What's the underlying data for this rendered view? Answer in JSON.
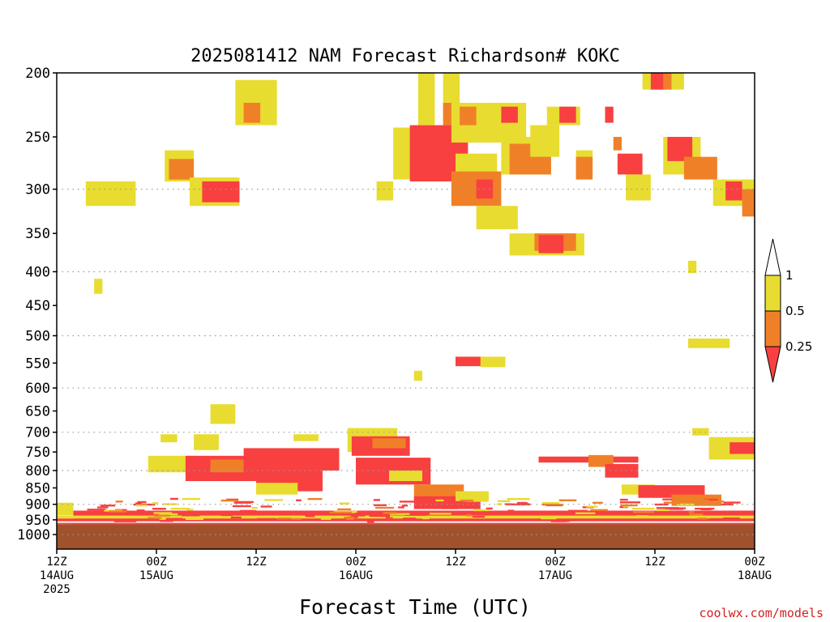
{
  "title": "2025081412 NAM Forecast Richardson# KOKC",
  "credit": "coolwx.com/models",
  "chart_data": {
    "type": "heatmap",
    "title": "2025081412 NAM Forecast Richardson# KOKC",
    "xlabel": "Forecast Time (UTC)",
    "ylabel": "",
    "x_unit": "forecast hour from 2025-08-14 12Z",
    "xlim": [
      0,
      84
    ],
    "y_scale": "log",
    "ylim": [
      1000,
      200
    ],
    "y_ticks": [
      200,
      250,
      300,
      350,
      400,
      450,
      500,
      550,
      600,
      650,
      700,
      750,
      800,
      850,
      900,
      950,
      1000
    ],
    "y_gridlines": [
      300,
      400,
      500,
      600,
      700,
      800,
      900,
      1000
    ],
    "grid": true,
    "x_ticks": [
      {
        "x": 0,
        "line1": "12Z",
        "line2": "14AUG",
        "line3": "2025"
      },
      {
        "x": 12,
        "line1": "00Z",
        "line2": "15AUG",
        "line3": ""
      },
      {
        "x": 24,
        "line1": "12Z",
        "line2": "",
        "line3": ""
      },
      {
        "x": 36,
        "line1": "00Z",
        "line2": "16AUG",
        "line3": ""
      },
      {
        "x": 48,
        "line1": "12Z",
        "line2": "",
        "line3": ""
      },
      {
        "x": 60,
        "line1": "00Z",
        "line2": "17AUG",
        "line3": ""
      },
      {
        "x": 72,
        "line1": "12Z",
        "line2": "",
        "line3": ""
      },
      {
        "x": 84,
        "line1": "00Z",
        "line2": "18AUG",
        "line3": ""
      }
    ],
    "legend": {
      "placement": "right",
      "levels": [
        "0.25",
        "0.5",
        "1"
      ],
      "colors": {
        "below_0.25": "#f84040",
        "0.25-0.5": "#f08028",
        "0.5-1": "#e8dc30",
        "above_1": "#ffffff"
      }
    },
    "ground_color": "#a0522d",
    "ground_top_p": 965,
    "regions": [
      {
        "c": "y",
        "x": [
          3.5,
          9.5
        ],
        "p": [
          292,
          318
        ]
      },
      {
        "c": "y",
        "x": [
          4.5,
          5.5
        ],
        "p": [
          410,
          432
        ]
      },
      {
        "c": "y",
        "x": [
          13,
          16.5
        ],
        "p": [
          262,
          292
        ]
      },
      {
        "c": "o",
        "x": [
          13.5,
          16.5
        ],
        "p": [
          270,
          290
        ]
      },
      {
        "c": "y",
        "x": [
          16,
          22
        ],
        "p": [
          288,
          318
        ]
      },
      {
        "c": "r",
        "x": [
          17.5,
          22
        ],
        "p": [
          292,
          314
        ]
      },
      {
        "c": "y",
        "x": [
          21.5,
          26.5
        ],
        "p": [
          205,
          240
        ]
      },
      {
        "c": "o",
        "x": [
          22.5,
          24.5
        ],
        "p": [
          222,
          238
        ]
      },
      {
        "c": "y",
        "x": [
          38.5,
          40.5
        ],
        "p": [
          292,
          312
        ]
      },
      {
        "c": "y",
        "x": [
          40.5,
          44
        ],
        "p": [
          242,
          290
        ]
      },
      {
        "c": "r",
        "x": [
          42.5,
          49.5
        ],
        "p": [
          240,
          292
        ]
      },
      {
        "c": "y",
        "x": [
          43.5,
          45.5
        ],
        "p": [
          200,
          240
        ]
      },
      {
        "c": "y",
        "x": [
          46.5,
          48.5
        ],
        "p": [
          200,
          235
        ]
      },
      {
        "c": "o",
        "x": [
          46.5,
          48
        ],
        "p": [
          222,
          240
        ]
      },
      {
        "c": "y",
        "x": [
          47.5,
          53.5
        ],
        "p": [
          222,
          255
        ]
      },
      {
        "c": "o",
        "x": [
          48.5,
          50.5
        ],
        "p": [
          225,
          240
        ]
      },
      {
        "c": "y",
        "x": [
          48,
          53
        ],
        "p": [
          265,
          300
        ]
      },
      {
        "c": "o",
        "x": [
          47.5,
          53.5
        ],
        "p": [
          282,
          318
        ]
      },
      {
        "c": "r",
        "x": [
          50.5,
          52.5
        ],
        "p": [
          290,
          310
        ]
      },
      {
        "c": "y",
        "x": [
          50.5,
          55.5
        ],
        "p": [
          318,
          345
        ]
      },
      {
        "c": "y",
        "x": [
          52.5,
          56.5
        ],
        "p": [
          222,
          250
        ]
      },
      {
        "c": "r",
        "x": [
          53.5,
          55.5
        ],
        "p": [
          225,
          238
        ]
      },
      {
        "c": "y",
        "x": [
          53.5,
          59.5
        ],
        "p": [
          250,
          285
        ]
      },
      {
        "c": "o",
        "x": [
          54.5,
          59.5
        ],
        "p": [
          256,
          285
        ]
      },
      {
        "c": "y",
        "x": [
          57,
          60.5
        ],
        "p": [
          240,
          268
        ]
      },
      {
        "c": "y",
        "x": [
          59,
          63
        ],
        "p": [
          225,
          240
        ]
      },
      {
        "c": "r",
        "x": [
          60.5,
          62.5
        ],
        "p": [
          225,
          238
        ]
      },
      {
        "c": "y",
        "x": [
          62.5,
          64.5
        ],
        "p": [
          262,
          290
        ]
      },
      {
        "c": "o",
        "x": [
          62.5,
          64.5
        ],
        "p": [
          268,
          290
        ]
      },
      {
        "c": "y",
        "x": [
          54.5,
          63.5
        ],
        "p": [
          350,
          378
        ]
      },
      {
        "c": "o",
        "x": [
          57.5,
          62.5
        ],
        "p": [
          350,
          372
        ]
      },
      {
        "c": "r",
        "x": [
          58,
          61
        ],
        "p": [
          352,
          375
        ]
      },
      {
        "c": "r",
        "x": [
          66,
          67
        ],
        "p": [
          225,
          238
        ]
      },
      {
        "c": "o",
        "x": [
          67,
          68
        ],
        "p": [
          250,
          262
        ]
      },
      {
        "c": "r",
        "x": [
          67.5,
          70.5
        ],
        "p": [
          265,
          285
        ]
      },
      {
        "c": "y",
        "x": [
          68.5,
          71.5
        ],
        "p": [
          285,
          312
        ]
      },
      {
        "c": "y",
        "x": [
          70.5,
          75.5
        ],
        "p": [
          200,
          212
        ]
      },
      {
        "c": "r",
        "x": [
          71.5,
          73.5
        ],
        "p": [
          200,
          212
        ]
      },
      {
        "c": "o",
        "x": [
          73,
          74
        ],
        "p": [
          200,
          212
        ]
      },
      {
        "c": "y",
        "x": [
          73,
          77.5
        ],
        "p": [
          250,
          285
        ]
      },
      {
        "c": "r",
        "x": [
          73.5,
          76.5
        ],
        "p": [
          250,
          272
        ]
      },
      {
        "c": "o",
        "x": [
          75.5,
          79.5
        ],
        "p": [
          268,
          290
        ]
      },
      {
        "c": "y",
        "x": [
          79,
          84
        ],
        "p": [
          290,
          318
        ]
      },
      {
        "c": "r",
        "x": [
          80.5,
          82.5
        ],
        "p": [
          292,
          312
        ]
      },
      {
        "c": "o",
        "x": [
          82.5,
          84
        ],
        "p": [
          300,
          330
        ]
      },
      {
        "c": "y",
        "x": [
          76,
          77
        ],
        "p": [
          385,
          402
        ]
      },
      {
        "c": "y",
        "x": [
          76,
          81
        ],
        "p": [
          505,
          522
        ]
      },
      {
        "c": "r",
        "x": [
          48,
          51.5
        ],
        "p": [
          538,
          556
        ]
      },
      {
        "c": "y",
        "x": [
          51,
          54
        ],
        "p": [
          538,
          558
        ]
      },
      {
        "c": "y",
        "x": [
          43,
          44
        ],
        "p": [
          565,
          585
        ]
      },
      {
        "c": "y",
        "x": [
          18.5,
          21.5
        ],
        "p": [
          635,
          680
        ]
      },
      {
        "c": "y",
        "x": [
          12.5,
          14.5
        ],
        "p": [
          705,
          725
        ]
      },
      {
        "c": "y",
        "x": [
          16.5,
          19.5
        ],
        "p": [
          705,
          745
        ]
      },
      {
        "c": "y",
        "x": [
          28.5,
          31.5
        ],
        "p": [
          705,
          722
        ]
      },
      {
        "c": "y",
        "x": [
          35,
          41
        ],
        "p": [
          690,
          750
        ]
      },
      {
        "c": "r",
        "x": [
          35.5,
          42.5
        ],
        "p": [
          710,
          760
        ]
      },
      {
        "c": "o",
        "x": [
          38,
          42
        ],
        "p": [
          715,
          740
        ]
      },
      {
        "c": "y",
        "x": [
          76.5,
          78.5
        ],
        "p": [
          690,
          708
        ]
      },
      {
        "c": "y",
        "x": [
          78.5,
          84
        ],
        "p": [
          712,
          770
        ]
      },
      {
        "c": "r",
        "x": [
          81,
          84
        ],
        "p": [
          725,
          755
        ]
      },
      {
        "c": "y",
        "x": [
          11,
          17
        ],
        "p": [
          760,
          805
        ]
      },
      {
        "c": "r",
        "x": [
          15.5,
          24.5
        ],
        "p": [
          760,
          830
        ]
      },
      {
        "c": "o",
        "x": [
          18.5,
          22.5
        ],
        "p": [
          770,
          805
        ]
      },
      {
        "c": "r",
        "x": [
          22.5,
          34
        ],
        "p": [
          740,
          800
        ]
      },
      {
        "c": "r",
        "x": [
          24,
          32
        ],
        "p": [
          800,
          860
        ]
      },
      {
        "c": "y",
        "x": [
          24,
          29
        ],
        "p": [
          835,
          870
        ]
      },
      {
        "c": "r",
        "x": [
          36,
          45
        ],
        "p": [
          765,
          840
        ]
      },
      {
        "c": "y",
        "x": [
          40,
          44
        ],
        "p": [
          800,
          830
        ]
      },
      {
        "c": "o",
        "x": [
          43,
          49
        ],
        "p": [
          840,
          880
        ]
      },
      {
        "c": "r",
        "x": [
          43,
          51
        ],
        "p": [
          875,
          915
        ]
      },
      {
        "c": "y",
        "x": [
          48,
          52
        ],
        "p": [
          860,
          890
        ]
      },
      {
        "c": "r",
        "x": [
          58,
          70
        ],
        "p": [
          762,
          778
        ]
      },
      {
        "c": "o",
        "x": [
          64,
          67
        ],
        "p": [
          758,
          790
        ]
      },
      {
        "c": "r",
        "x": [
          66,
          70
        ],
        "p": [
          782,
          820
        ]
      },
      {
        "c": "y",
        "x": [
          68,
          72
        ],
        "p": [
          840,
          870
        ]
      },
      {
        "c": "r",
        "x": [
          70,
          78
        ],
        "p": [
          842,
          880
        ]
      },
      {
        "c": "o",
        "x": [
          74,
          80
        ],
        "p": [
          870,
          905
        ]
      },
      {
        "c": "y",
        "x": [
          0,
          2
        ],
        "p": [
          895,
          935
        ]
      },
      {
        "c": "r",
        "x": [
          2,
          84
        ],
        "p": [
          920,
          965
        ]
      },
      {
        "c": "y",
        "x": [
          0,
          84
        ],
        "p": [
          936,
          946
        ]
      },
      {
        "c": "r",
        "x": [
          0,
          84
        ],
        "p": [
          946,
          965
        ]
      },
      {
        "c": "w",
        "x": [
          0,
          84
        ],
        "p": [
          955,
          960
        ]
      }
    ],
    "streaks": [
      {
        "c": "r",
        "p": [
          880,
          955
        ],
        "x": [
          3,
          81
        ],
        "n": 90,
        "seed": 7
      },
      {
        "c": "y",
        "p": [
          880,
          950
        ],
        "x": [
          5,
          78
        ],
        "n": 40,
        "seed": 13
      },
      {
        "c": "o",
        "p": [
          880,
          950
        ],
        "x": [
          6,
          79
        ],
        "n": 30,
        "seed": 29
      }
    ]
  }
}
